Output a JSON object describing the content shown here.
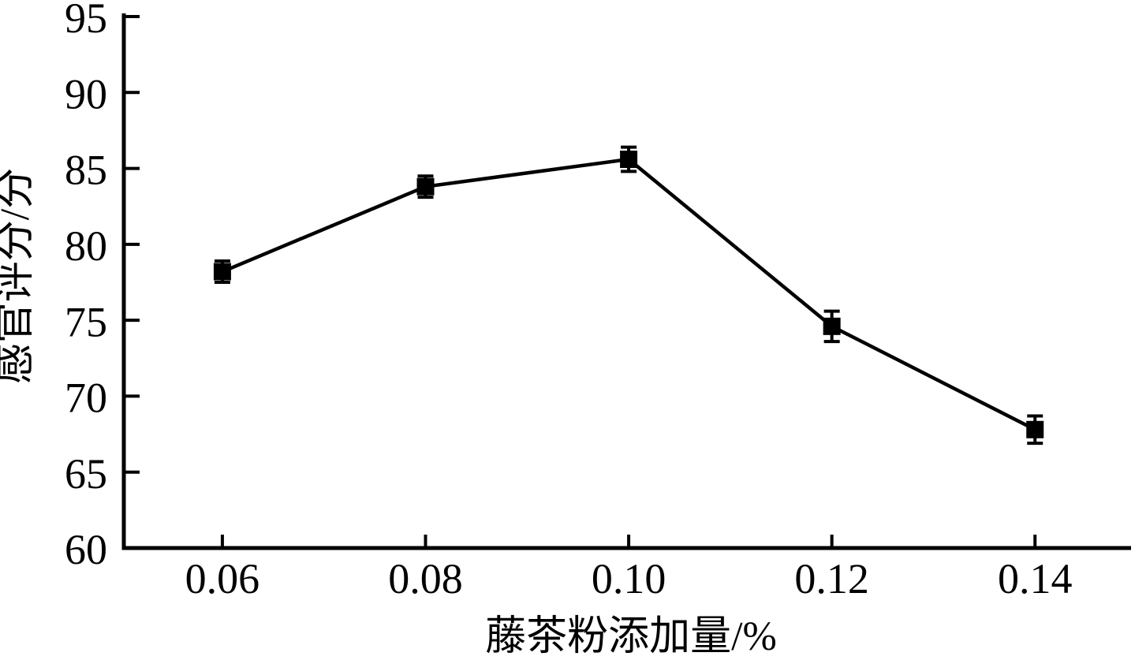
{
  "figure": {
    "background": "#ffffff",
    "foreground": "#000000"
  },
  "chart_data": {
    "type": "line",
    "title": "",
    "xlabel": "藤茶粉添加量/%",
    "ylabel": "感官评分/分",
    "x": [
      0.06,
      0.08,
      0.1,
      0.12,
      0.14
    ],
    "x_tick_labels": [
      "0.06",
      "0.08",
      "0.10",
      "0.12",
      "0.14"
    ],
    "y_ticks": [
      60,
      65,
      70,
      75,
      80,
      85,
      90,
      95
    ],
    "y_tick_labels": [
      "60",
      "65",
      "70",
      "75",
      "80",
      "85",
      "90",
      "95"
    ],
    "ylim": [
      60,
      95
    ],
    "xlim": [
      0.0503,
      0.1493
    ],
    "grid": false,
    "legend": "none",
    "marker": "square",
    "line_color": "#000000",
    "series": [
      {
        "name": "感官评分",
        "values": [
          78.2,
          83.8,
          85.6,
          74.6,
          67.8
        ],
        "errors": [
          0.7,
          0.7,
          0.8,
          1.0,
          0.9
        ]
      }
    ]
  }
}
